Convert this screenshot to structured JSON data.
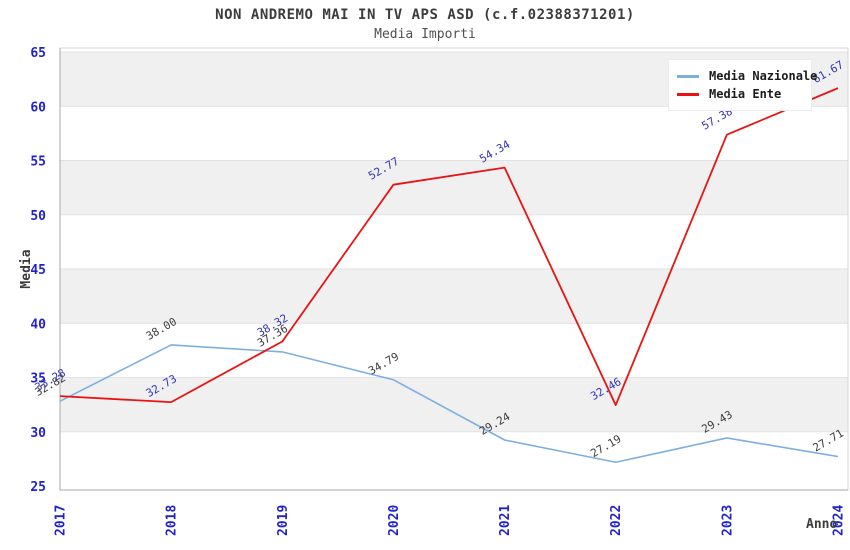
{
  "title": "NON ANDREMO MAI IN TV APS ASD (c.f.02388371201)",
  "subtitle": "Media Importi",
  "colors": {
    "axis_text": "#2222cc",
    "axis_title": "#3c3c3c",
    "band": "#f0f0f0",
    "grid": "#e2e2e2",
    "plot_border": "#d6d6d6",
    "bottom_axis": "#aaaaaa",
    "background": "#ffffff"
  },
  "chart_data": {
    "type": "line",
    "x": [
      2017,
      2018,
      2019,
      2020,
      2021,
      2022,
      2023,
      2024
    ],
    "series": [
      {
        "name": "Media Nazionale",
        "color": "#7cb0e2",
        "label_color": "#3d3d3d",
        "values": [
          32.82,
          38.0,
          37.36,
          34.79,
          29.24,
          27.19,
          29.43,
          27.71
        ]
      },
      {
        "name": "Media Ente",
        "color": "#e81414",
        "label_color": "#3333bb",
        "values": [
          33.28,
          32.73,
          38.32,
          52.77,
          54.34,
          32.46,
          57.38,
          61.67
        ]
      }
    ],
    "xlabel": "Anno",
    "ylabel": "Media",
    "ylim": [
      25,
      65
    ],
    "ytick_step": 5,
    "grid": "horizontal-bands",
    "legend_position": "top-right"
  }
}
